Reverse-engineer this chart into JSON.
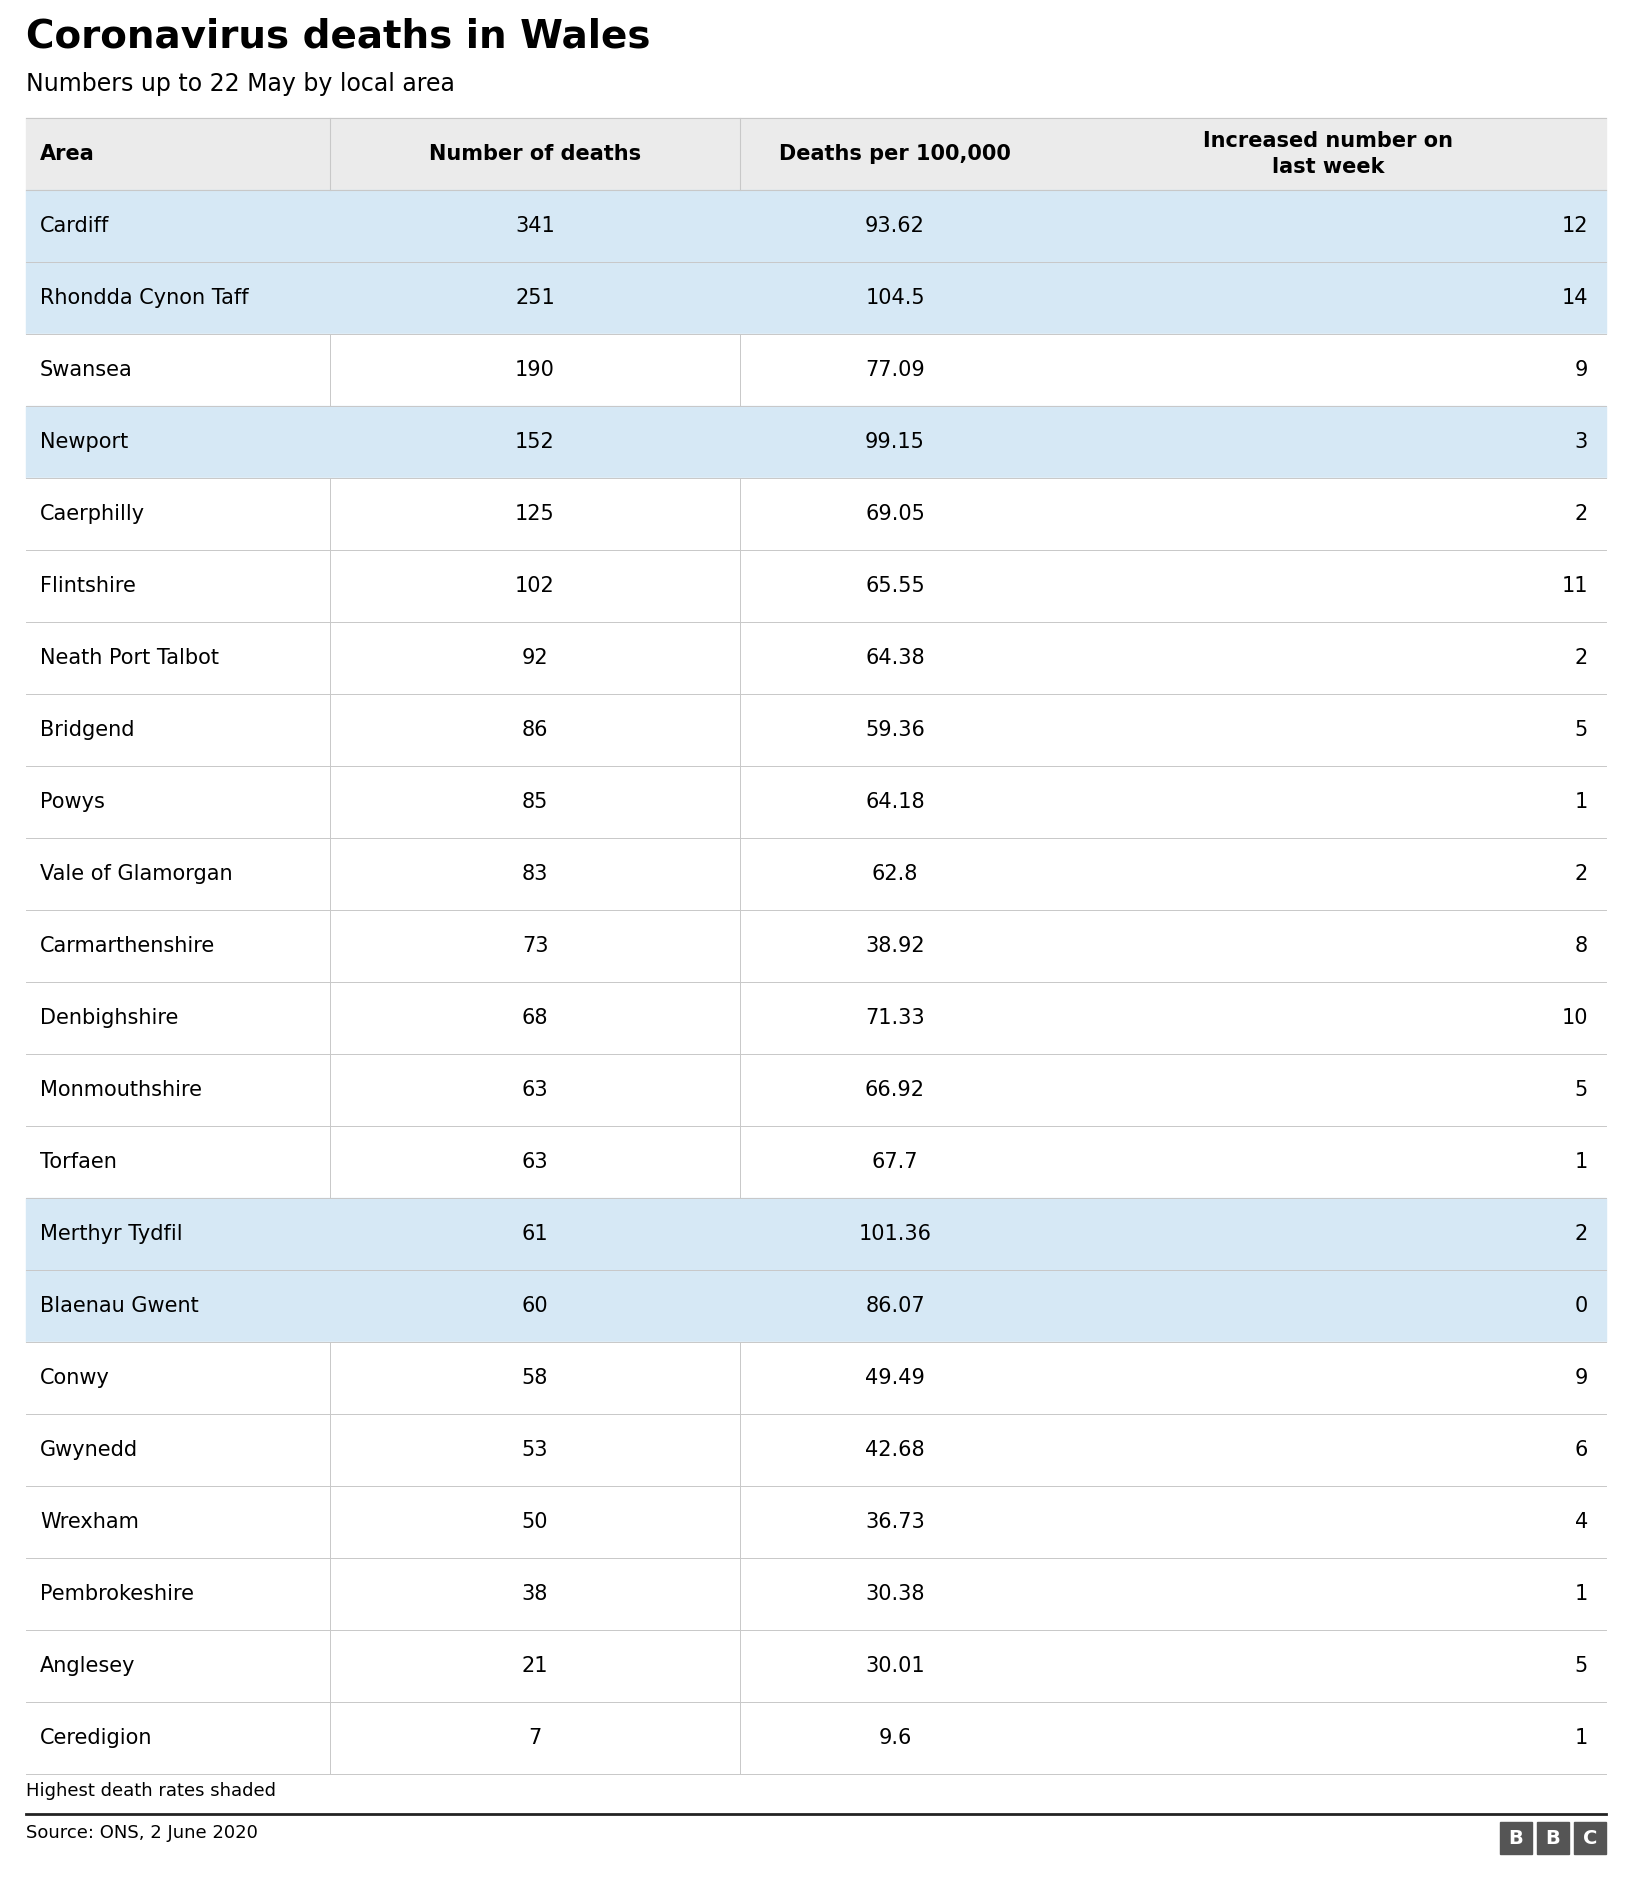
{
  "title": "Coronavirus deaths in Wales",
  "subtitle": "Numbers up to 22 May by local area",
  "col_headers": [
    "Area",
    "Number of deaths",
    "Deaths per 100,000",
    "Increased number on\nlast week"
  ],
  "rows": [
    {
      "area": "Cardiff",
      "deaths": "341",
      "per100k": "93.62",
      "increase": "12",
      "highlighted": true
    },
    {
      "area": "Rhondda Cynon Taff",
      "deaths": "251",
      "per100k": "104.5",
      "increase": "14",
      "highlighted": true
    },
    {
      "area": "Swansea",
      "deaths": "190",
      "per100k": "77.09",
      "increase": "9",
      "highlighted": false
    },
    {
      "area": "Newport",
      "deaths": "152",
      "per100k": "99.15",
      "increase": "3",
      "highlighted": true
    },
    {
      "area": "Caerphilly",
      "deaths": "125",
      "per100k": "69.05",
      "increase": "2",
      "highlighted": false
    },
    {
      "area": "Flintshire",
      "deaths": "102",
      "per100k": "65.55",
      "increase": "11",
      "highlighted": false
    },
    {
      "area": "Neath Port Talbot",
      "deaths": "92",
      "per100k": "64.38",
      "increase": "2",
      "highlighted": false
    },
    {
      "area": "Bridgend",
      "deaths": "86",
      "per100k": "59.36",
      "increase": "5",
      "highlighted": false
    },
    {
      "area": "Powys",
      "deaths": "85",
      "per100k": "64.18",
      "increase": "1",
      "highlighted": false
    },
    {
      "area": "Vale of Glamorgan",
      "deaths": "83",
      "per100k": "62.8",
      "increase": "2",
      "highlighted": false
    },
    {
      "area": "Carmarthenshire",
      "deaths": "73",
      "per100k": "38.92",
      "increase": "8",
      "highlighted": false
    },
    {
      "area": "Denbighshire",
      "deaths": "68",
      "per100k": "71.33",
      "increase": "10",
      "highlighted": false
    },
    {
      "area": "Monmouthshire",
      "deaths": "63",
      "per100k": "66.92",
      "increase": "5",
      "highlighted": false
    },
    {
      "area": "Torfaen",
      "deaths": "63",
      "per100k": "67.7",
      "increase": "1",
      "highlighted": false
    },
    {
      "area": "Merthyr Tydfil",
      "deaths": "61",
      "per100k": "101.36",
      "increase": "2",
      "highlighted": true
    },
    {
      "area": "Blaenau Gwent",
      "deaths": "60",
      "per100k": "86.07",
      "increase": "0",
      "highlighted": true
    },
    {
      "area": "Conwy",
      "deaths": "58",
      "per100k": "49.49",
      "increase": "9",
      "highlighted": false
    },
    {
      "area": "Gwynedd",
      "deaths": "53",
      "per100k": "42.68",
      "increase": "6",
      "highlighted": false
    },
    {
      "area": "Wrexham",
      "deaths": "50",
      "per100k": "36.73",
      "increase": "4",
      "highlighted": false
    },
    {
      "area": "Pembrokeshire",
      "deaths": "38",
      "per100k": "30.38",
      "increase": "1",
      "highlighted": false
    },
    {
      "area": "Anglesey",
      "deaths": "21",
      "per100k": "30.01",
      "increase": "5",
      "highlighted": false
    },
    {
      "area": "Ceredigion",
      "deaths": "7",
      "per100k": "9.6",
      "increase": "1",
      "highlighted": false
    }
  ],
  "highlight_color": "#d6e8f5",
  "header_bg_color": "#ebebeb",
  "white_color": "#ffffff",
  "border_color": "#c8c8c8",
  "text_color": "#000000",
  "source_text": "Source: ONS, 2 June 2020",
  "footer_note": "Highest death rates shaded",
  "title_fontsize": 28,
  "subtitle_fontsize": 17,
  "header_fontsize": 15,
  "cell_fontsize": 15,
  "footer_fontsize": 13,
  "bbc_color": "#555555"
}
